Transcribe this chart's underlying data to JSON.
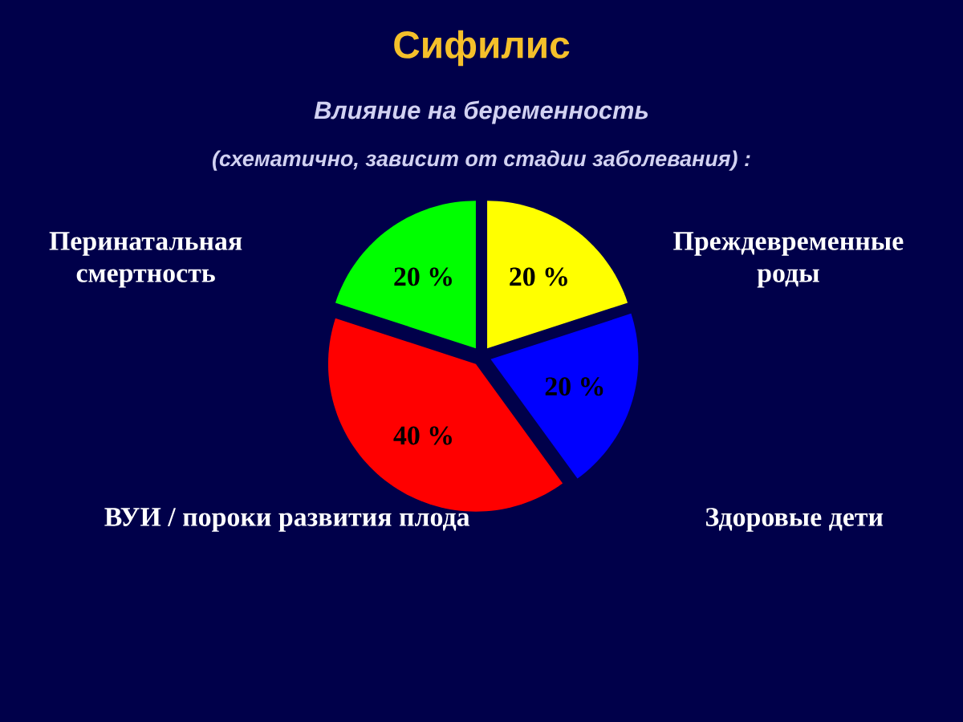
{
  "chart_data": {
    "type": "pie",
    "title": "Сифилис",
    "subtitle": "Влияние на беременность",
    "annotations": [
      "(схематично, зависит от стадии заболевания) :"
    ],
    "categories": [
      "Преждевременные роды",
      "Здоровые дети",
      "ВУИ / пороки развития плода",
      "Перинатальная смертность"
    ],
    "values": [
      20,
      20,
      40,
      20
    ],
    "colors": [
      "#ffff00",
      "#0000ff",
      "#ff0000",
      "#00ff00"
    ],
    "value_labels": [
      "20 %",
      "20 %",
      "40 %",
      "20 %"
    ]
  }
}
